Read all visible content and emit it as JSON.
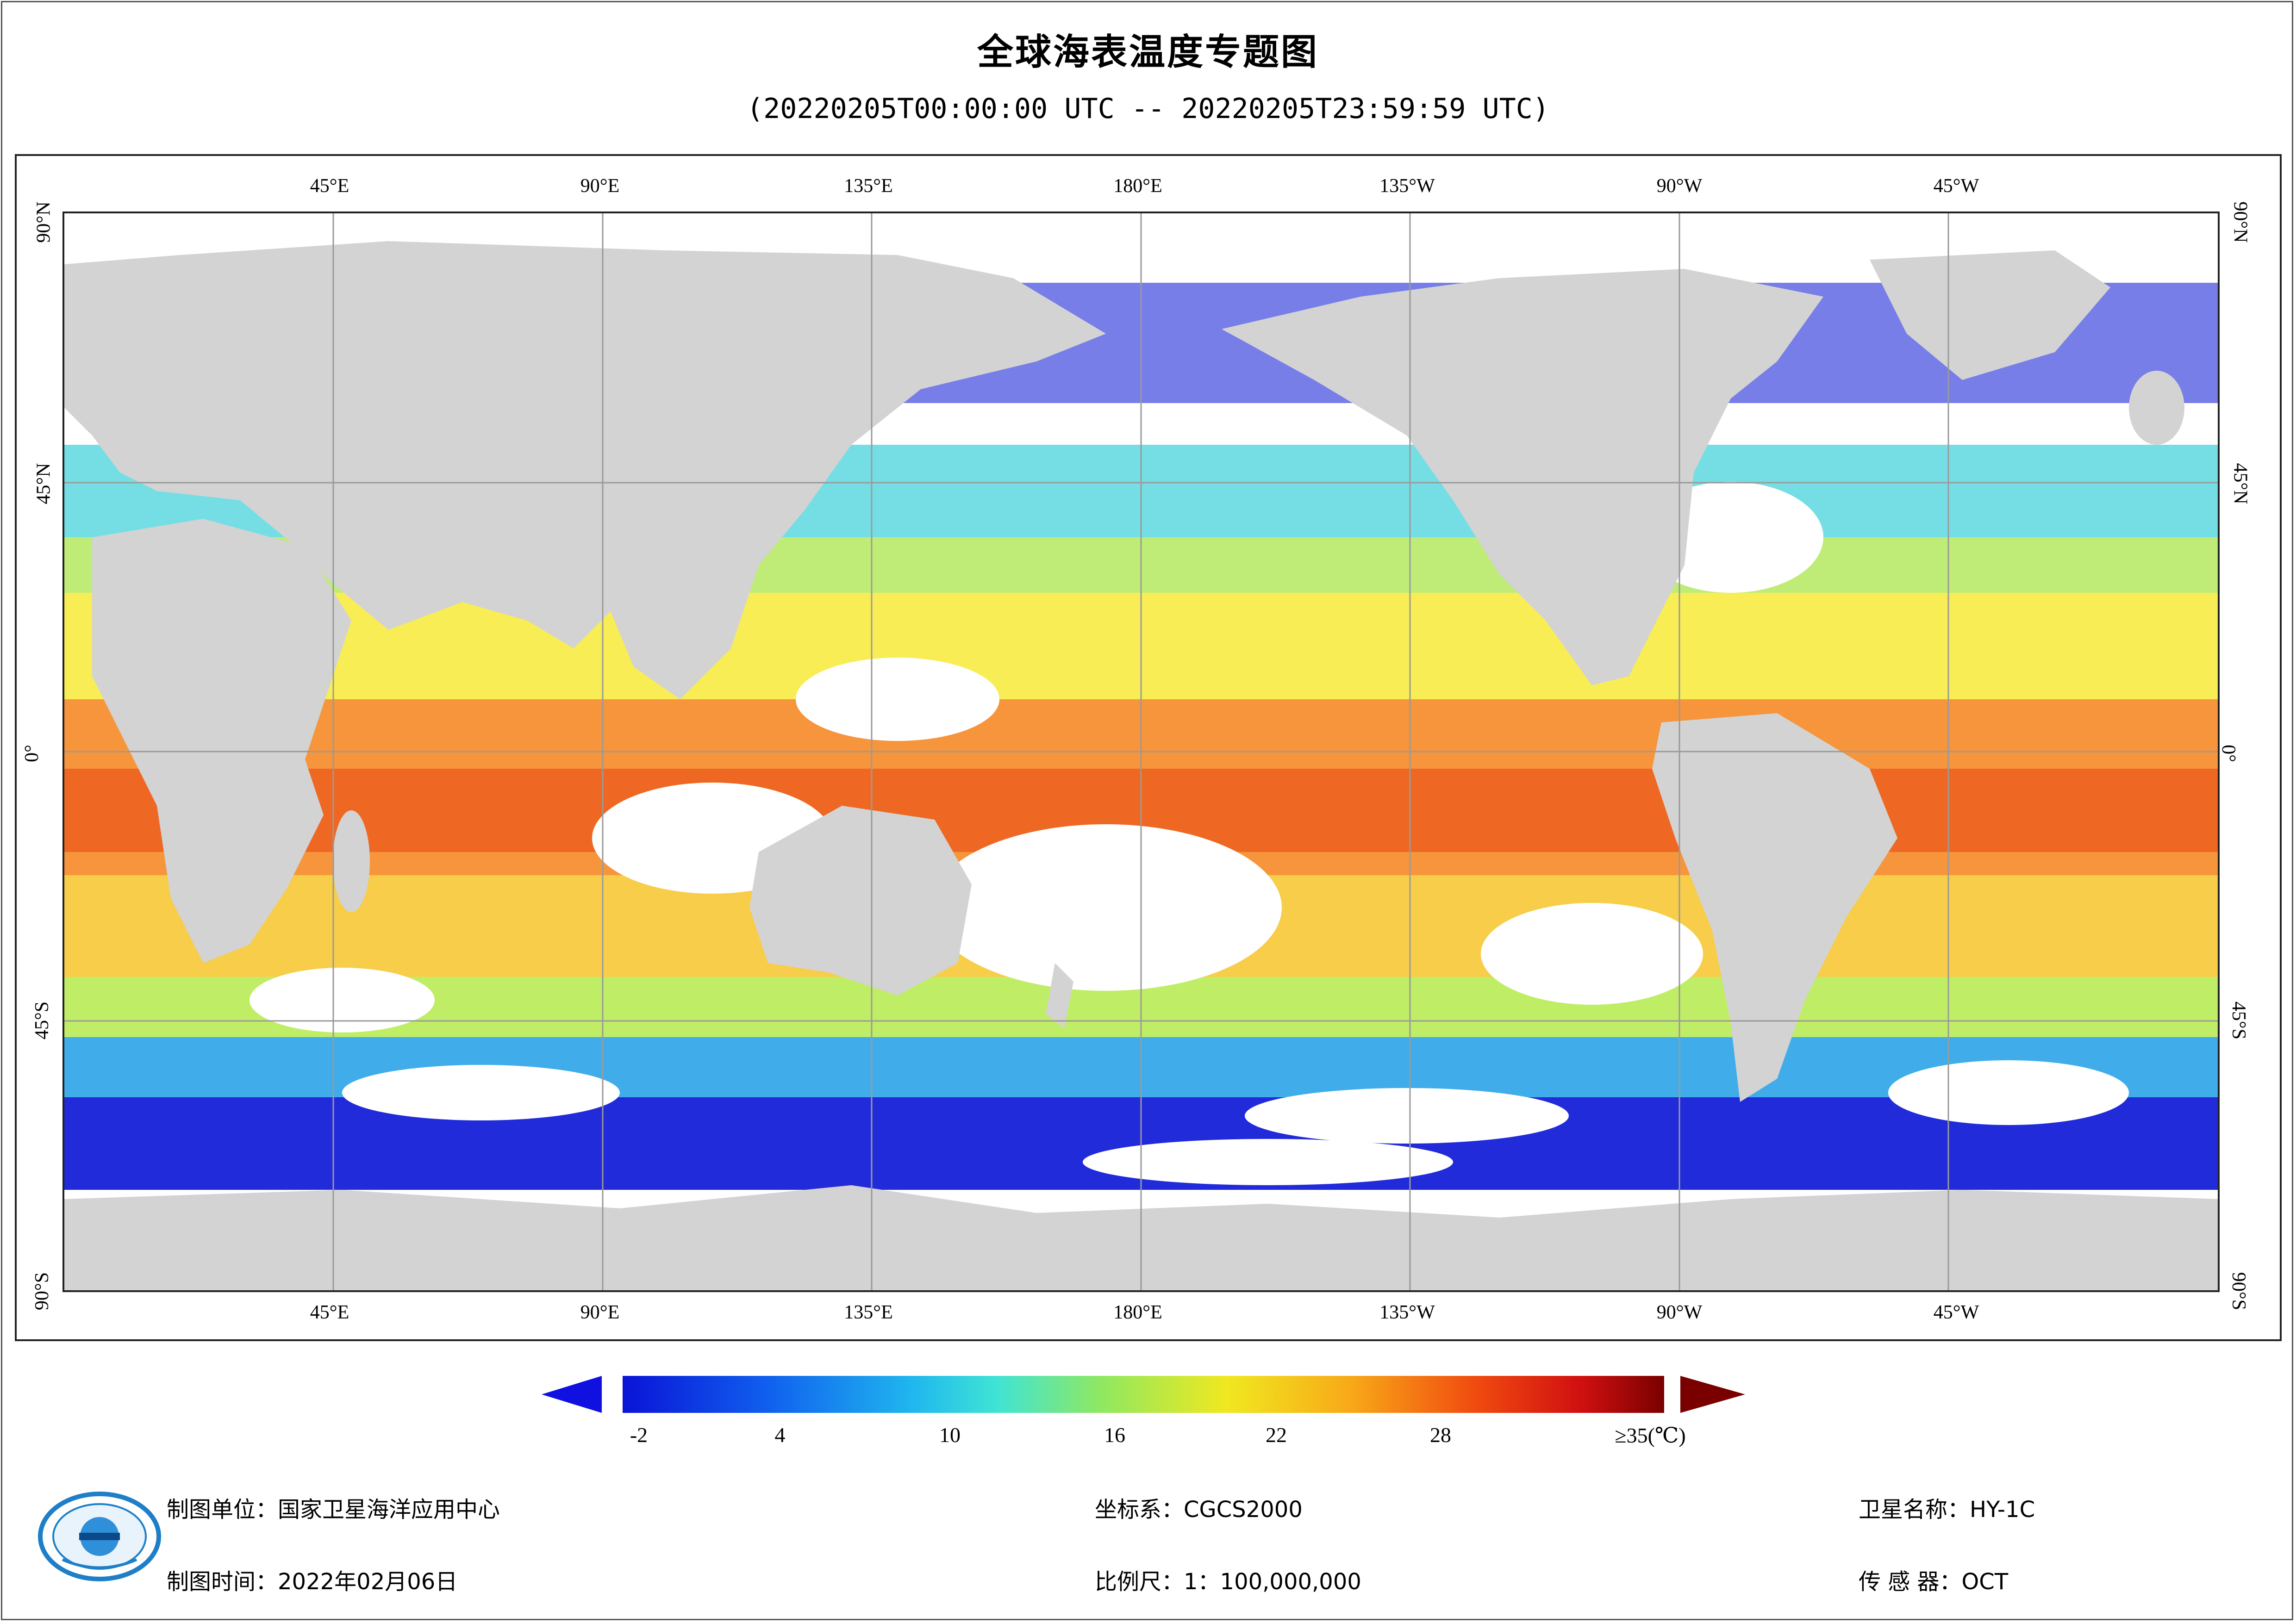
{
  "header": {
    "title": "全球海表温度专题图",
    "subtitle": "(20220205T00:00:00 UTC -- 20220205T23:59:59 UTC)"
  },
  "map": {
    "longitude_labels": [
      "45°E",
      "90°E",
      "135°E",
      "180°E",
      "135°W",
      "90°W",
      "45°W"
    ],
    "latitude_labels": [
      "90°N",
      "45°N",
      "0°",
      "45°S",
      "90°S"
    ],
    "colors": {
      "land": "#d3d3d3",
      "cloud": "#ffffff",
      "grid": "#9a9a9a",
      "cold": "#0a14d6",
      "cool": "#1e9fe6",
      "mild": "#5fe0c8",
      "green": "#a8e64a",
      "yellow": "#f6e82a",
      "orange": "#f79a1a",
      "red": "#e8440e"
    }
  },
  "legend": {
    "tick_labels": [
      "-2",
      "4",
      "10",
      "16",
      "22",
      "28",
      "≥35(℃)"
    ],
    "low_arrow_color": "#1010e0",
    "high_arrow_color": "#7a0000"
  },
  "footer": {
    "org": "制图单位：国家卫星海洋应用中心",
    "date": "制图时间：2022年02月06日",
    "crs": "坐标系：CGCS2000",
    "scale": "比例尺：1：100,000,000",
    "satellite": "卫星名称：HY-1C",
    "sensor": "传 感 器：OCT"
  }
}
